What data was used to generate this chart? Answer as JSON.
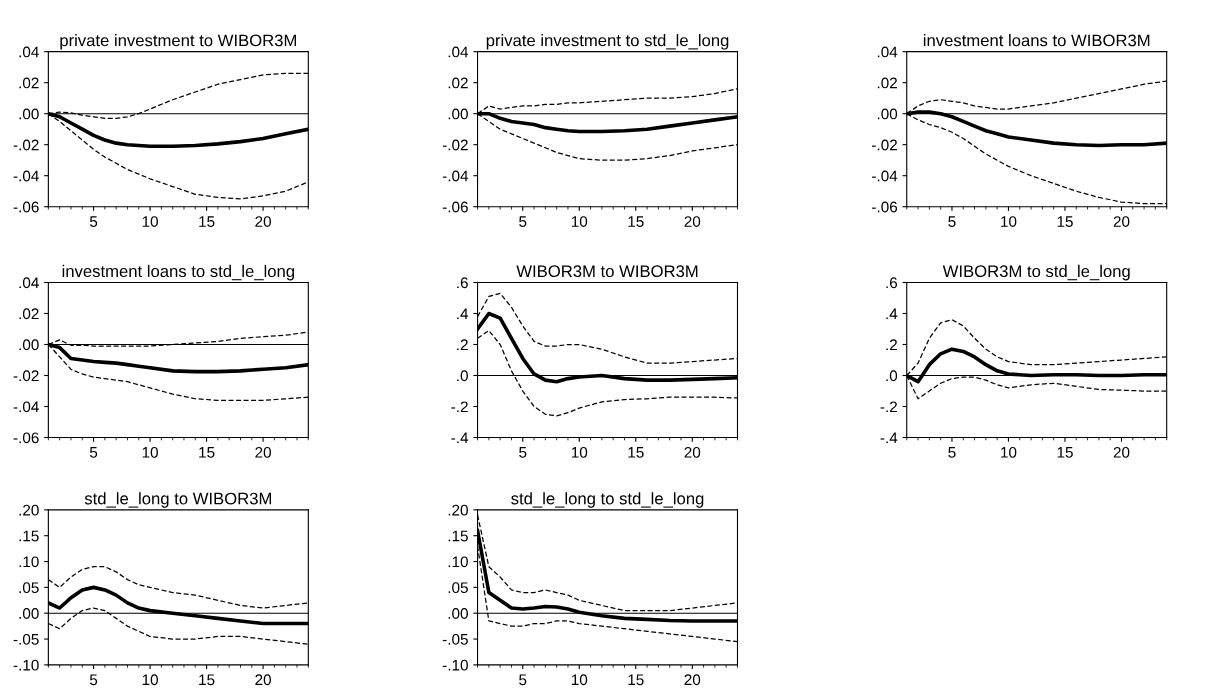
{
  "chart_data": [
    {
      "type": "line",
      "title": "private investment to WIBOR3M",
      "x": [
        1,
        2,
        3,
        4,
        5,
        6,
        7,
        8,
        9,
        10,
        12,
        14,
        16,
        18,
        20,
        22,
        24
      ],
      "xlim": [
        1,
        24
      ],
      "xticks": [
        5,
        10,
        15,
        20
      ],
      "ylim": [
        -0.06,
        0.04
      ],
      "yticks": [
        {
          "value": -0.06,
          "label": "-.06"
        },
        {
          "value": -0.04,
          "label": "-.04"
        },
        {
          "value": -0.02,
          "label": "-.02"
        },
        {
          "value": 0,
          "label": ".00"
        },
        {
          "value": 0.02,
          "label": ".02"
        },
        {
          "value": 0.04,
          "label": ".04"
        }
      ],
      "ref_lines": [
        {
          "axis": "y",
          "value": 0,
          "color": "#000000"
        }
      ],
      "series": [
        {
          "color": "#000000",
          "line_style": "solid",
          "values": [
            0,
            -0.002,
            -0.006,
            -0.01,
            -0.014,
            -0.017,
            -0.019,
            -0.02,
            -0.0205,
            -0.021,
            -0.021,
            -0.0205,
            -0.0195,
            -0.018,
            -0.016,
            -0.013,
            -0.01
          ]
        },
        {
          "color": "#000000",
          "line_style": "dashed",
          "values": [
            0,
            0.001,
            0.0005,
            -0.001,
            -0.002,
            -0.003,
            -0.003,
            -0.002,
            0,
            0.003,
            0.009,
            0.014,
            0.019,
            0.022,
            0.025,
            0.026,
            0.026
          ]
        },
        {
          "color": "#000000",
          "line_style": "dashed",
          "values": [
            0,
            -0.005,
            -0.011,
            -0.017,
            -0.023,
            -0.028,
            -0.032,
            -0.036,
            -0.039,
            -0.042,
            -0.047,
            -0.052,
            -0.054,
            -0.055,
            -0.053,
            -0.05,
            -0.044
          ]
        }
      ]
    },
    {
      "type": "line",
      "title": "private investment to std_le_long",
      "x": [
        1,
        2,
        3,
        4,
        5,
        6,
        7,
        8,
        9,
        10,
        12,
        14,
        16,
        18,
        20,
        22,
        24
      ],
      "xlim": [
        1,
        24
      ],
      "xticks": [
        5,
        10,
        15,
        20
      ],
      "ylim": [
        -0.06,
        0.04
      ],
      "yticks": [
        {
          "value": -0.06,
          "label": "-.06"
        },
        {
          "value": -0.04,
          "label": "-.04"
        },
        {
          "value": -0.02,
          "label": "-.02"
        },
        {
          "value": 0,
          "label": ".00"
        },
        {
          "value": 0.02,
          "label": ".02"
        },
        {
          "value": 0.04,
          "label": ".04"
        }
      ],
      "ref_lines": [
        {
          "axis": "y",
          "value": 0,
          "color": "#000000"
        }
      ],
      "series": [
        {
          "color": "#000000",
          "line_style": "solid",
          "values": [
            0,
            0,
            -0.003,
            -0.005,
            -0.006,
            -0.007,
            -0.009,
            -0.01,
            -0.011,
            -0.0115,
            -0.0115,
            -0.011,
            -0.01,
            -0.008,
            -0.006,
            -0.004,
            -0.002
          ]
        },
        {
          "color": "#000000",
          "line_style": "dashed",
          "values": [
            0,
            0.005,
            0.003,
            0.004,
            0.005,
            0.005,
            0.006,
            0.006,
            0.007,
            0.007,
            0.008,
            0.009,
            0.01,
            0.01,
            0.011,
            0.013,
            0.016
          ]
        },
        {
          "color": "#000000",
          "line_style": "dashed",
          "values": [
            0,
            -0.005,
            -0.01,
            -0.013,
            -0.016,
            -0.019,
            -0.022,
            -0.025,
            -0.027,
            -0.029,
            -0.03,
            -0.03,
            -0.029,
            -0.027,
            -0.024,
            -0.022,
            -0.02
          ]
        }
      ]
    },
    {
      "type": "line",
      "title": "investment loans to WIBOR3M",
      "x": [
        1,
        2,
        3,
        4,
        5,
        6,
        7,
        8,
        9,
        10,
        12,
        14,
        16,
        18,
        20,
        22,
        24
      ],
      "xlim": [
        1,
        24
      ],
      "xticks": [
        5,
        10,
        15,
        20
      ],
      "ylim": [
        -0.06,
        0.04
      ],
      "yticks": [
        {
          "value": -0.06,
          "label": "-.06"
        },
        {
          "value": -0.04,
          "label": "-.04"
        },
        {
          "value": -0.02,
          "label": "-.02"
        },
        {
          "value": 0,
          "label": ".00"
        },
        {
          "value": 0.02,
          "label": ".02"
        },
        {
          "value": 0.04,
          "label": ".04"
        }
      ],
      "ref_lines": [
        {
          "axis": "y",
          "value": 0,
          "color": "#000000"
        }
      ],
      "series": [
        {
          "color": "#000000",
          "line_style": "solid",
          "values": [
            0,
            0.001,
            0.001,
            0,
            -0.002,
            -0.005,
            -0.008,
            -0.011,
            -0.013,
            -0.015,
            -0.017,
            -0.019,
            -0.02,
            -0.0205,
            -0.02,
            -0.02,
            -0.019
          ]
        },
        {
          "color": "#000000",
          "line_style": "dashed",
          "values": [
            0,
            0.005,
            0.008,
            0.009,
            0.008,
            0.007,
            0.005,
            0.004,
            0.003,
            0.003,
            0.005,
            0.007,
            0.01,
            0.013,
            0.016,
            0.019,
            0.021
          ]
        },
        {
          "color": "#000000",
          "line_style": "dashed",
          "values": [
            0,
            -0.004,
            -0.007,
            -0.009,
            -0.012,
            -0.016,
            -0.021,
            -0.026,
            -0.03,
            -0.034,
            -0.04,
            -0.045,
            -0.05,
            -0.054,
            -0.057,
            -0.058,
            -0.058
          ]
        }
      ]
    },
    {
      "type": "line",
      "title": "investment loans to std_le_long",
      "x": [
        1,
        2,
        3,
        4,
        5,
        6,
        7,
        8,
        9,
        10,
        12,
        14,
        16,
        18,
        20,
        22,
        24
      ],
      "xlim": [
        1,
        24
      ],
      "xticks": [
        5,
        10,
        15,
        20
      ],
      "ylim": [
        -0.06,
        0.04
      ],
      "yticks": [
        {
          "value": -0.06,
          "label": "-.06"
        },
        {
          "value": -0.04,
          "label": "-.04"
        },
        {
          "value": -0.02,
          "label": "-.02"
        },
        {
          "value": 0,
          "label": ".00"
        },
        {
          "value": 0.02,
          "label": ".02"
        },
        {
          "value": 0.04,
          "label": ".04"
        }
      ],
      "ref_lines": [
        {
          "axis": "y",
          "value": 0,
          "color": "#000000"
        }
      ],
      "series": [
        {
          "color": "#000000",
          "line_style": "solid",
          "values": [
            0,
            -0.002,
            -0.009,
            -0.01,
            -0.011,
            -0.0115,
            -0.012,
            -0.013,
            -0.014,
            -0.015,
            -0.017,
            -0.0175,
            -0.0175,
            -0.017,
            -0.016,
            -0.015,
            -0.013
          ]
        },
        {
          "color": "#000000",
          "line_style": "dashed",
          "values": [
            0,
            0.003,
            -0.0005,
            -0.0005,
            -0.001,
            -0.001,
            -0.001,
            -0.001,
            -0.001,
            -0.001,
            0,
            0.001,
            0.002,
            0.004,
            0.005,
            0.006,
            0.008
          ]
        },
        {
          "color": "#000000",
          "line_style": "dashed",
          "values": [
            0,
            -0.008,
            -0.016,
            -0.019,
            -0.021,
            -0.022,
            -0.023,
            -0.024,
            -0.026,
            -0.028,
            -0.032,
            -0.035,
            -0.036,
            -0.036,
            -0.036,
            -0.035,
            -0.034
          ]
        }
      ]
    },
    {
      "type": "line",
      "title": "WIBOR3M to WIBOR3M",
      "x": [
        1,
        2,
        3,
        4,
        5,
        6,
        7,
        8,
        9,
        10,
        12,
        14,
        16,
        18,
        20,
        22,
        24
      ],
      "xlim": [
        1,
        24
      ],
      "xticks": [
        5,
        10,
        15,
        20
      ],
      "ylim": [
        -0.4,
        0.6
      ],
      "yticks": [
        {
          "value": -0.4,
          "label": "-.4"
        },
        {
          "value": -0.2,
          "label": "-.2"
        },
        {
          "value": 0,
          "label": ".0"
        },
        {
          "value": 0.2,
          "label": ".2"
        },
        {
          "value": 0.4,
          "label": ".4"
        },
        {
          "value": 0.6,
          "label": ".6"
        }
      ],
      "ref_lines": [
        {
          "axis": "y",
          "value": 0,
          "color": "#000000"
        }
      ],
      "series": [
        {
          "color": "#000000",
          "line_style": "solid",
          "values": [
            0.3,
            0.4,
            0.37,
            0.24,
            0.11,
            0.01,
            -0.03,
            -0.04,
            -0.02,
            -0.01,
            0,
            -0.02,
            -0.03,
            -0.03,
            -0.025,
            -0.02,
            -0.015
          ]
        },
        {
          "color": "#000000",
          "line_style": "dashed",
          "values": [
            0.38,
            0.51,
            0.53,
            0.44,
            0.32,
            0.22,
            0.19,
            0.19,
            0.2,
            0.2,
            0.17,
            0.12,
            0.08,
            0.08,
            0.09,
            0.1,
            0.11
          ]
        },
        {
          "color": "#000000",
          "line_style": "dashed",
          "values": [
            0.24,
            0.29,
            0.2,
            0.03,
            -0.1,
            -0.2,
            -0.25,
            -0.26,
            -0.24,
            -0.21,
            -0.17,
            -0.155,
            -0.15,
            -0.14,
            -0.14,
            -0.14,
            -0.145
          ]
        }
      ]
    },
    {
      "type": "line",
      "title": "WIBOR3M to std_le_long",
      "x": [
        1,
        2,
        3,
        4,
        5,
        6,
        7,
        8,
        9,
        10,
        12,
        14,
        16,
        18,
        20,
        22,
        24
      ],
      "xlim": [
        1,
        24
      ],
      "xticks": [
        5,
        10,
        15,
        20
      ],
      "ylim": [
        -0.4,
        0.6
      ],
      "yticks": [
        {
          "value": -0.4,
          "label": "-.4"
        },
        {
          "value": -0.2,
          "label": "-.2"
        },
        {
          "value": 0,
          "label": ".0"
        },
        {
          "value": 0.2,
          "label": ".2"
        },
        {
          "value": 0.4,
          "label": ".4"
        },
        {
          "value": 0.6,
          "label": ".6"
        }
      ],
      "ref_lines": [
        {
          "axis": "y",
          "value": 0,
          "color": "#000000"
        }
      ],
      "series": [
        {
          "color": "#000000",
          "line_style": "solid",
          "values": [
            0,
            -0.04,
            0.07,
            0.14,
            0.17,
            0.155,
            0.12,
            0.07,
            0.03,
            0.01,
            0,
            0.005,
            0.005,
            0,
            0,
            0.005,
            0.005
          ]
        },
        {
          "color": "#000000",
          "line_style": "dashed",
          "values": [
            0,
            0.08,
            0.24,
            0.34,
            0.36,
            0.32,
            0.24,
            0.17,
            0.12,
            0.09,
            0.07,
            0.07,
            0.08,
            0.09,
            0.1,
            0.11,
            0.12
          ]
        },
        {
          "color": "#000000",
          "line_style": "dashed",
          "values": [
            0,
            -0.15,
            -0.1,
            -0.05,
            -0.02,
            -0.01,
            -0.01,
            -0.03,
            -0.06,
            -0.08,
            -0.06,
            -0.05,
            -0.07,
            -0.09,
            -0.095,
            -0.1,
            -0.1
          ]
        }
      ]
    },
    {
      "type": "line",
      "title": "std_le_long to WIBOR3M",
      "x": [
        1,
        2,
        3,
        4,
        5,
        6,
        7,
        8,
        9,
        10,
        12,
        14,
        16,
        18,
        20,
        22,
        24
      ],
      "xlim": [
        1,
        24
      ],
      "xticks": [
        5,
        10,
        15,
        20
      ],
      "ylim": [
        -0.1,
        0.2
      ],
      "yticks": [
        {
          "value": -0.1,
          "label": "-.10"
        },
        {
          "value": -0.05,
          "label": "-.05"
        },
        {
          "value": 0,
          "label": ".00"
        },
        {
          "value": 0.05,
          "label": ".05"
        },
        {
          "value": 0.1,
          "label": ".10"
        },
        {
          "value": 0.15,
          "label": ".15"
        },
        {
          "value": 0.2,
          "label": ".20"
        }
      ],
      "ref_lines": [
        {
          "axis": "y",
          "value": 0,
          "color": "#000000"
        }
      ],
      "series": [
        {
          "color": "#000000",
          "line_style": "solid",
          "values": [
            0.02,
            0.01,
            0.03,
            0.045,
            0.05,
            0.045,
            0.035,
            0.02,
            0.01,
            0.005,
            0,
            -0.005,
            -0.01,
            -0.015,
            -0.02,
            -0.02,
            -0.02
          ]
        },
        {
          "color": "#000000",
          "line_style": "dashed",
          "values": [
            0.065,
            0.05,
            0.07,
            0.085,
            0.09,
            0.09,
            0.08,
            0.065,
            0.055,
            0.05,
            0.04,
            0.035,
            0.025,
            0.015,
            0.01,
            0.015,
            0.02
          ]
        },
        {
          "color": "#000000",
          "line_style": "dashed",
          "values": [
            -0.02,
            -0.03,
            -0.01,
            0.005,
            0.01,
            0.005,
            -0.01,
            -0.025,
            -0.035,
            -0.045,
            -0.05,
            -0.05,
            -0.045,
            -0.045,
            -0.05,
            -0.055,
            -0.06
          ]
        }
      ]
    },
    {
      "type": "line",
      "title": "std_le_long to std_le_long",
      "x": [
        1,
        2,
        3,
        4,
        5,
        6,
        7,
        8,
        9,
        10,
        12,
        14,
        16,
        18,
        20,
        22,
        24
      ],
      "xlim": [
        1,
        24
      ],
      "xticks": [
        5,
        10,
        15,
        20
      ],
      "ylim": [
        -0.1,
        0.2
      ],
      "yticks": [
        {
          "value": -0.1,
          "label": "-.10"
        },
        {
          "value": -0.05,
          "label": "-.05"
        },
        {
          "value": 0,
          "label": ".00"
        },
        {
          "value": 0.05,
          "label": ".05"
        },
        {
          "value": 0.1,
          "label": ".10"
        },
        {
          "value": 0.15,
          "label": ".15"
        },
        {
          "value": 0.2,
          "label": ".20"
        }
      ],
      "ref_lines": [
        {
          "axis": "y",
          "value": 0,
          "color": "#000000"
        }
      ],
      "series": [
        {
          "color": "#000000",
          "line_style": "solid",
          "values": [
            0.16,
            0.04,
            0.025,
            0.01,
            0.008,
            0.01,
            0.013,
            0.012,
            0.008,
            0.002,
            -0.005,
            -0.01,
            -0.012,
            -0.014,
            -0.015,
            -0.015,
            -0.015
          ]
        },
        {
          "color": "#000000",
          "line_style": "dashed",
          "values": [
            0.19,
            0.09,
            0.07,
            0.045,
            0.04,
            0.04,
            0.045,
            0.04,
            0.035,
            0.025,
            0.015,
            0.005,
            0.005,
            0.005,
            0.01,
            0.015,
            0.02
          ]
        },
        {
          "color": "#000000",
          "line_style": "dashed",
          "values": [
            0.13,
            -0.015,
            -0.02,
            -0.025,
            -0.025,
            -0.02,
            -0.02,
            -0.015,
            -0.015,
            -0.02,
            -0.025,
            -0.03,
            -0.035,
            -0.04,
            -0.045,
            -0.05,
            -0.055
          ]
        }
      ]
    }
  ]
}
